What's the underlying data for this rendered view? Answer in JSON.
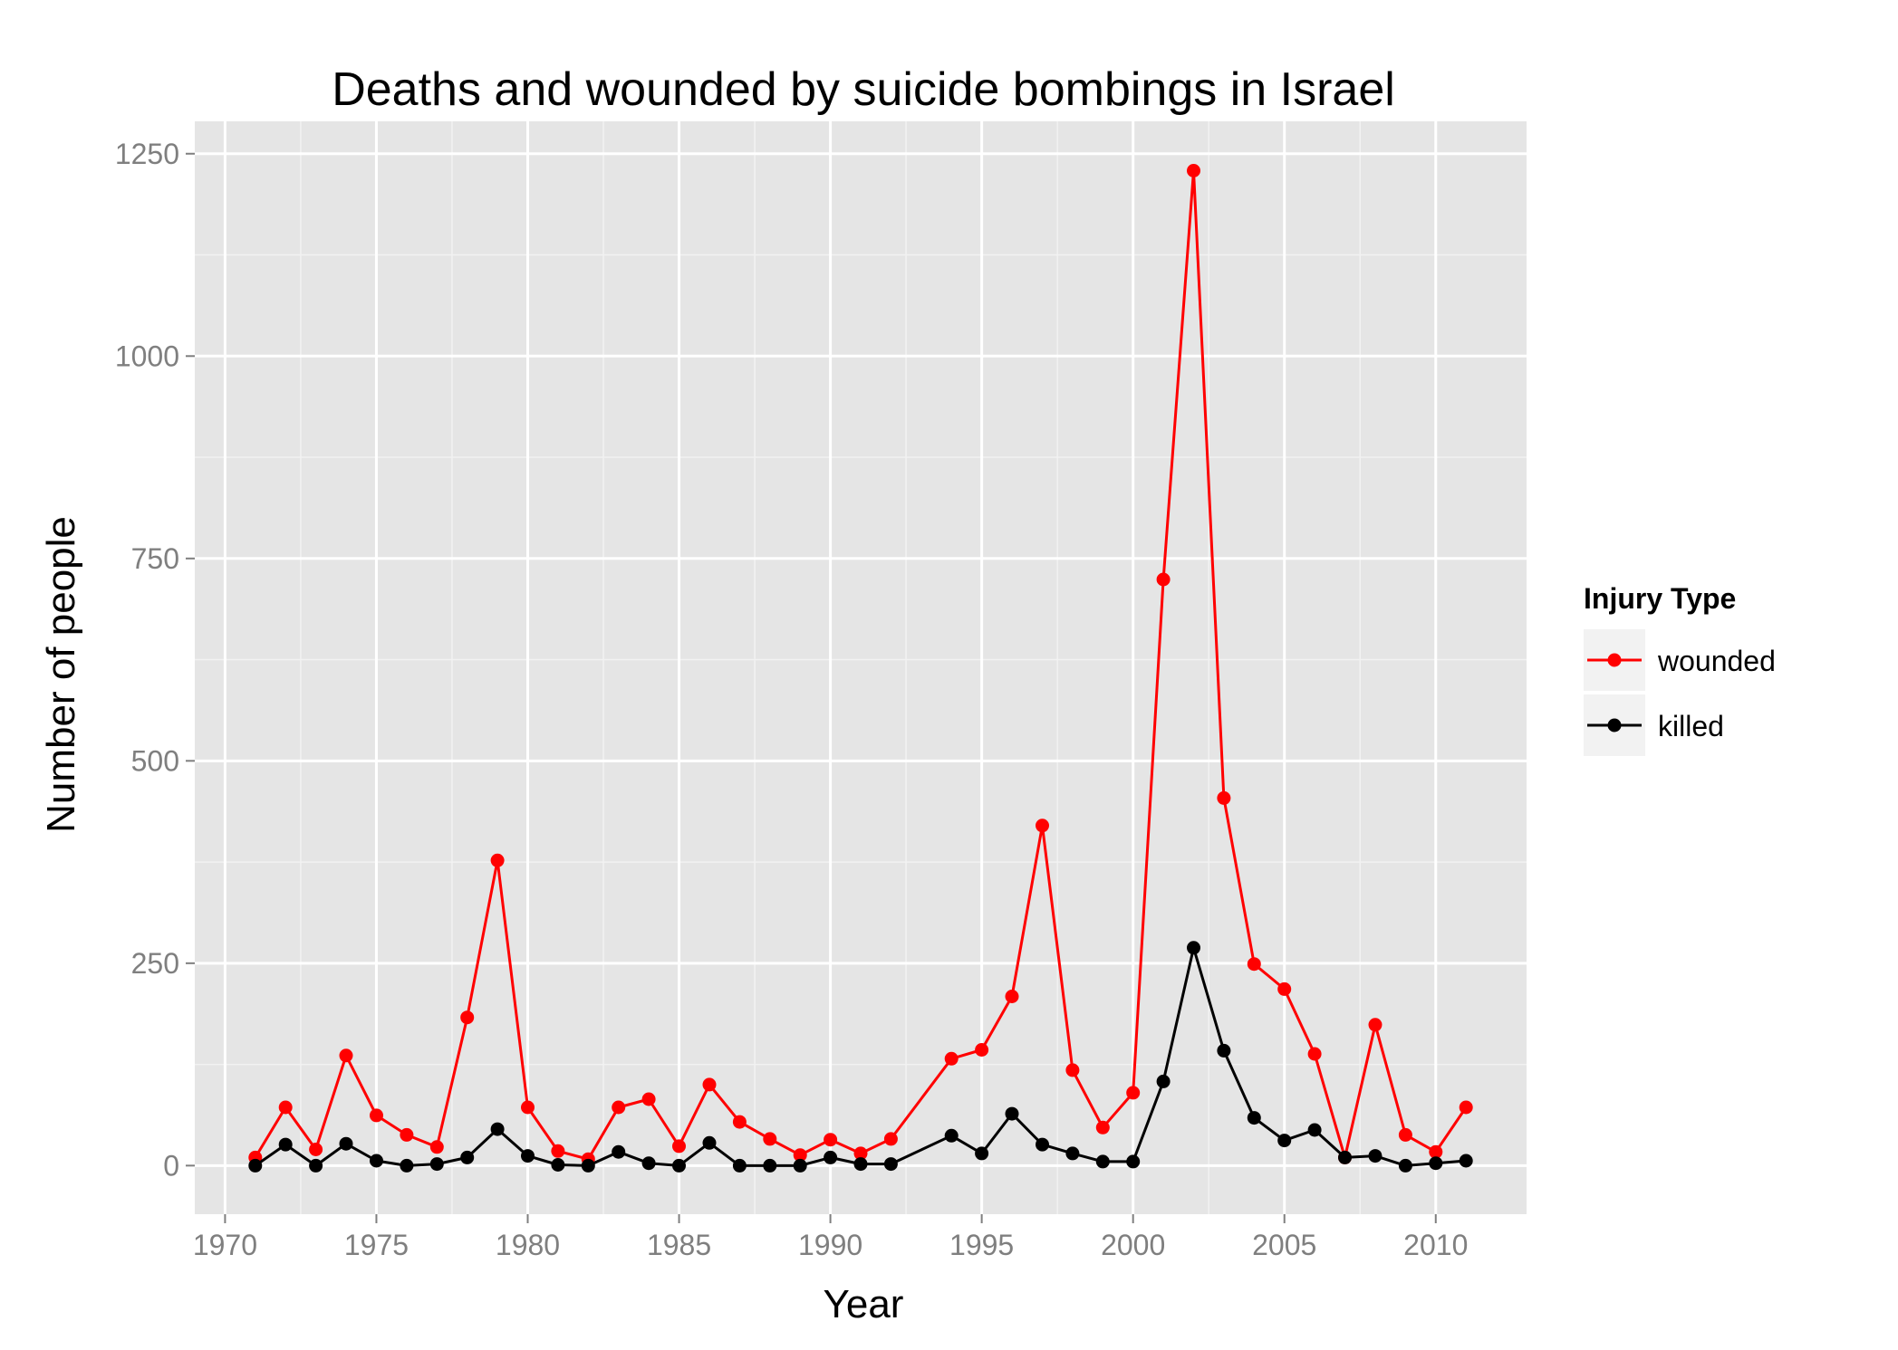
{
  "chart_data": {
    "type": "line",
    "title": "Deaths and wounded by suicide bombings in Israel",
    "xlabel": "Year",
    "ylabel": "Number of people",
    "xlim": [
      1969,
      2013
    ],
    "ylim": [
      -60,
      1290
    ],
    "x_ticks": [
      1970,
      1975,
      1980,
      1985,
      1990,
      1995,
      2000,
      2005,
      2010
    ],
    "y_ticks": [
      0,
      250,
      500,
      750,
      1000,
      1250
    ],
    "grid": true,
    "legend": {
      "title": "Injury Type",
      "placement": "right"
    },
    "series": [
      {
        "name": "wounded",
        "color": "#ff0000",
        "points": [
          [
            1971,
            10
          ],
          [
            1972,
            72
          ],
          [
            1973,
            20
          ],
          [
            1974,
            136
          ],
          [
            1975,
            62
          ],
          [
            1976,
            38
          ],
          [
            1977,
            23
          ],
          [
            1978,
            183
          ],
          [
            1979,
            377
          ],
          [
            1980,
            72
          ],
          [
            1981,
            18
          ],
          [
            1982,
            8
          ],
          [
            1983,
            72
          ],
          [
            1984,
            82
          ],
          [
            1985,
            24
          ],
          [
            1986,
            100
          ],
          [
            1987,
            54
          ],
          [
            1988,
            33
          ],
          [
            1989,
            13
          ],
          [
            1990,
            32
          ],
          [
            1991,
            15
          ],
          [
            1992,
            33
          ],
          [
            1994,
            132
          ],
          [
            1995,
            143
          ],
          [
            1996,
            209
          ],
          [
            1997,
            420
          ],
          [
            1998,
            118
          ],
          [
            1999,
            47
          ],
          [
            2000,
            90
          ],
          [
            2001,
            724
          ],
          [
            2002,
            1229
          ],
          [
            2003,
            454
          ],
          [
            2004,
            249
          ],
          [
            2005,
            218
          ],
          [
            2006,
            138
          ],
          [
            2007,
            10
          ],
          [
            2008,
            174
          ],
          [
            2009,
            38
          ],
          [
            2010,
            17
          ],
          [
            2011,
            72
          ]
        ]
      },
      {
        "name": "killed",
        "color": "#000000",
        "points": [
          [
            1971,
            0
          ],
          [
            1972,
            26
          ],
          [
            1973,
            0
          ],
          [
            1974,
            27
          ],
          [
            1975,
            6
          ],
          [
            1976,
            0
          ],
          [
            1977,
            2
          ],
          [
            1978,
            10
          ],
          [
            1979,
            45
          ],
          [
            1980,
            12
          ],
          [
            1981,
            1
          ],
          [
            1982,
            0
          ],
          [
            1983,
            17
          ],
          [
            1984,
            3
          ],
          [
            1985,
            0
          ],
          [
            1986,
            28
          ],
          [
            1987,
            0
          ],
          [
            1988,
            0
          ],
          [
            1989,
            0
          ],
          [
            1990,
            10
          ],
          [
            1991,
            2
          ],
          [
            1992,
            2
          ],
          [
            1994,
            37
          ],
          [
            1995,
            15
          ],
          [
            1996,
            64
          ],
          [
            1997,
            26
          ],
          [
            1998,
            15
          ],
          [
            1999,
            5
          ],
          [
            2000,
            5
          ],
          [
            2001,
            104
          ],
          [
            2002,
            269
          ],
          [
            2003,
            142
          ],
          [
            2004,
            59
          ],
          [
            2005,
            31
          ],
          [
            2006,
            44
          ],
          [
            2007,
            10
          ],
          [
            2008,
            12
          ],
          [
            2009,
            0
          ],
          [
            2010,
            3
          ],
          [
            2011,
            6
          ]
        ]
      }
    ]
  },
  "colors": {
    "panel_background": "#e5e5e5",
    "grid_major": "#ffffff",
    "grid_minor": "#f2f2f2",
    "tick_label": "#7f7f7f",
    "legend_key_background": "#f2f2f2"
  }
}
